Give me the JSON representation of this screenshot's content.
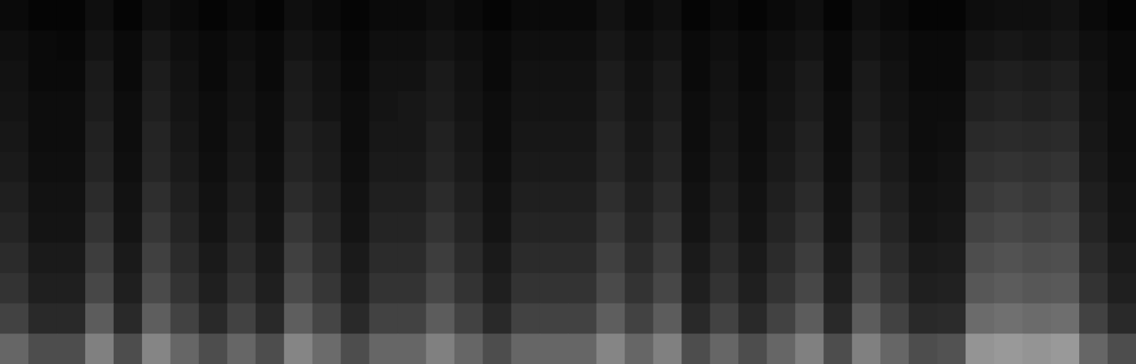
{
  "chart_data": {
    "type": "heatmap",
    "tick_labels": false,
    "cells": [
      [
        4,
        2,
        2,
        6,
        2,
        6,
        4,
        2,
        4,
        2,
        6,
        4,
        2,
        4,
        4,
        6,
        4,
        2,
        4,
        4,
        4,
        7,
        4,
        6,
        2,
        4,
        2,
        4,
        6,
        2,
        6,
        4,
        2,
        2,
        5,
        6,
        6,
        7,
        4,
        2
      ],
      [
        6,
        4,
        3,
        8,
        4,
        9,
        6,
        4,
        6,
        4,
        8,
        6,
        3,
        6,
        6,
        8,
        6,
        4,
        6,
        6,
        6,
        9,
        6,
        8,
        4,
        6,
        4,
        6,
        8,
        4,
        8,
        6,
        4,
        4,
        8,
        9,
        8,
        9,
        6,
        4
      ],
      [
        7,
        4,
        4,
        10,
        4,
        11,
        7,
        4,
        7,
        4,
        10,
        7,
        4,
        7,
        7,
        10,
        7,
        4,
        7,
        7,
        7,
        11,
        7,
        10,
        4,
        7,
        4,
        7,
        10,
        4,
        10,
        7,
        4,
        4,
        11,
        12,
        11,
        12,
        7,
        4
      ],
      [
        8,
        5,
        5,
        11,
        5,
        12,
        8,
        5,
        8,
        5,
        11,
        8,
        5,
        8,
        9,
        11,
        8,
        5,
        8,
        8,
        8,
        12,
        8,
        11,
        5,
        8,
        5,
        8,
        11,
        5,
        11,
        8,
        5,
        5,
        13,
        14,
        13,
        14,
        8,
        5
      ],
      [
        9,
        5,
        5,
        13,
        5,
        14,
        9,
        5,
        9,
        5,
        13,
        10,
        5,
        9,
        9,
        13,
        9,
        5,
        9,
        9,
        9,
        14,
        9,
        13,
        5,
        9,
        5,
        9,
        13,
        5,
        13,
        9,
        5,
        6,
        16,
        17,
        16,
        17,
        9,
        5
      ],
      [
        10,
        6,
        6,
        14,
        6,
        15,
        10,
        6,
        10,
        6,
        14,
        11,
        6,
        10,
        10,
        14,
        10,
        6,
        10,
        10,
        10,
        15,
        10,
        14,
        6,
        10,
        6,
        10,
        14,
        6,
        14,
        10,
        6,
        7,
        19,
        20,
        19,
        20,
        10,
        6
      ],
      [
        12,
        7,
        7,
        17,
        7,
        18,
        12,
        7,
        12,
        7,
        17,
        13,
        7,
        12,
        12,
        17,
        12,
        7,
        12,
        12,
        12,
        18,
        12,
        17,
        7,
        12,
        7,
        12,
        17,
        7,
        17,
        12,
        7,
        8,
        22,
        24,
        22,
        24,
        12,
        7
      ],
      [
        14,
        8,
        8,
        20,
        8,
        21,
        14,
        8,
        14,
        8,
        21,
        15,
        8,
        14,
        14,
        20,
        14,
        8,
        14,
        14,
        14,
        21,
        14,
        20,
        8,
        14,
        8,
        14,
        20,
        8,
        20,
        14,
        8,
        9,
        26,
        28,
        26,
        27,
        14,
        8
      ],
      [
        17,
        10,
        10,
        24,
        10,
        25,
        17,
        10,
        17,
        10,
        25,
        18,
        10,
        17,
        17,
        24,
        17,
        10,
        17,
        17,
        17,
        25,
        17,
        24,
        10,
        17,
        10,
        17,
        24,
        10,
        24,
        17,
        10,
        11,
        30,
        32,
        30,
        31,
        17,
        10
      ],
      [
        20,
        12,
        12,
        28,
        12,
        29,
        20,
        12,
        20,
        12,
        29,
        21,
        12,
        20,
        20,
        28,
        20,
        12,
        20,
        20,
        20,
        29,
        20,
        28,
        12,
        20,
        12,
        20,
        28,
        12,
        28,
        20,
        12,
        13,
        34,
        36,
        34,
        35,
        20,
        12
      ],
      [
        26,
        16,
        16,
        36,
        16,
        37,
        26,
        16,
        26,
        16,
        37,
        27,
        16,
        26,
        26,
        36,
        26,
        16,
        26,
        26,
        26,
        37,
        26,
        36,
        16,
        26,
        16,
        26,
        36,
        16,
        36,
        26,
        16,
        17,
        42,
        44,
        42,
        43,
        26,
        16
      ],
      [
        40,
        30,
        30,
        50,
        30,
        52,
        40,
        30,
        40,
        30,
        52,
        42,
        30,
        40,
        40,
        50,
        40,
        30,
        40,
        40,
        40,
        52,
        40,
        50,
        30,
        40,
        30,
        40,
        50,
        30,
        50,
        40,
        30,
        32,
        58,
        60,
        58,
        60,
        40,
        30
      ]
    ]
  }
}
